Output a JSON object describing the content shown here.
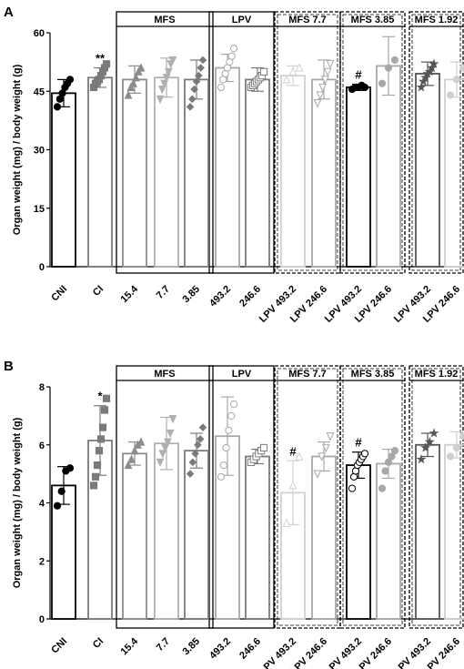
{
  "chart_data": [
    {
      "panel_label": "A",
      "type": "bar",
      "ylabel": "Organ weight (mg) / body weight (g)",
      "ylim": [
        0,
        60
      ],
      "yticks": [
        0,
        15,
        30,
        45,
        60
      ],
      "categories": [
        "CNI",
        "CI",
        "15.4",
        "7.7",
        "3.85",
        "493.2",
        "246.6",
        "LPV 493.2",
        "LPV 246.6",
        "LPV 493.2",
        "LPV 246.6",
        "LPV 493.2",
        "LPV 246.6"
      ],
      "values": [
        44.5,
        48.5,
        48,
        48.5,
        48,
        51,
        48,
        49,
        48,
        46,
        51.5,
        49.5,
        48
      ],
      "sd": [
        3.5,
        2.5,
        3.5,
        5,
        5,
        3.5,
        3,
        2.5,
        5,
        0.8,
        7.5,
        3,
        4.5
      ],
      "bar_colors": [
        "#000000",
        "#7a7a7a",
        "#8c8c8c",
        "#b0b0b0",
        "#7a7a7a",
        "#a8a8a8",
        "#7a7a7a",
        "#d2d2d2",
        "#a8a8a8",
        "#000000",
        "#a8a8a8",
        "#555555",
        "#cfcfcf"
      ],
      "markers": [
        "circle",
        "square",
        "triangle",
        "triangle-down",
        "diamond",
        "circle-open",
        "square-open",
        "triangle-open",
        "triangle-down-open",
        "circle",
        "circle",
        "star",
        "circle"
      ],
      "points": [
        [
          41,
          43,
          44.5,
          46,
          47,
          48
        ],
        [
          46,
          47,
          47.5,
          48,
          49,
          50,
          51,
          52
        ],
        [
          44,
          46,
          47,
          48.5,
          50,
          51
        ],
        [
          43,
          45.5,
          47,
          48.5,
          50,
          52,
          53
        ],
        [
          41,
          43,
          45.5,
          47.5,
          49,
          51,
          53
        ],
        [
          46,
          48,
          49.5,
          51,
          52.5,
          54,
          56
        ],
        [
          46,
          46.5,
          47,
          47.5,
          48,
          48.5,
          49,
          50
        ],
        [
          48,
          50,
          51
        ],
        [
          42,
          44,
          46,
          48,
          50,
          52
        ],
        [
          45.5,
          46,
          46,
          46.5,
          46
        ],
        [
          47,
          51,
          53
        ],
        [
          46,
          47.5,
          48.5,
          49.5,
          50,
          51,
          52
        ],
        [
          44,
          48,
          51
        ]
      ],
      "annotations": [
        {
          "category_index": 1,
          "text": "**"
        },
        {
          "category_index": 9,
          "text": "#"
        }
      ],
      "groups": [
        {
          "label": "MFS",
          "from": 2,
          "to": 4,
          "style": "solid"
        },
        {
          "label": "LPV",
          "from": 5,
          "to": 6,
          "style": "solid"
        },
        {
          "label": "MFS 7.7",
          "from": 7,
          "to": 8,
          "style": "dashed"
        },
        {
          "label": "MFS 3.85",
          "from": 9,
          "to": 10,
          "style": "dashed"
        },
        {
          "label": "MFS 1.92",
          "from": 11,
          "to": 12,
          "style": "dashed"
        }
      ]
    },
    {
      "panel_label": "B",
      "type": "bar",
      "ylabel": "Organ weight (mg) / body weight (g)",
      "ylim": [
        0,
        8
      ],
      "yticks": [
        0,
        2,
        4,
        6,
        8
      ],
      "categories": [
        "CNI",
        "CI",
        "15.4",
        "7.7",
        "3.85",
        "493.2",
        "246.6",
        "LPV 493.2",
        "LPV 246.6",
        "LPV 493.2",
        "LPV 246.6",
        "LPV 493.2",
        "LPV 246.6"
      ],
      "values": [
        4.6,
        6.15,
        5.7,
        6.05,
        5.8,
        6.3,
        5.6,
        4.35,
        5.6,
        5.3,
        5.35,
        6.0,
        6.0
      ],
      "sd": [
        0.65,
        1.2,
        0.4,
        0.9,
        0.6,
        1.35,
        0.25,
        1.1,
        0.5,
        0.45,
        0.5,
        0.4,
        0.45
      ],
      "bar_colors": [
        "#000000",
        "#7a7a7a",
        "#8c8c8c",
        "#b0b0b0",
        "#7a7a7a",
        "#a8a8a8",
        "#7a7a7a",
        "#d2d2d2",
        "#a8a8a8",
        "#000000",
        "#a8a8a8",
        "#555555",
        "#cfcfcf"
      ],
      "markers": [
        "circle",
        "square",
        "triangle",
        "triangle-down",
        "diamond",
        "circle-open",
        "square-open",
        "triangle-open",
        "triangle-down-open",
        "circle-open",
        "circle",
        "star",
        "circle"
      ],
      "points": [
        [
          3.9,
          4.4,
          5.1,
          5.2
        ],
        [
          4.6,
          4.9,
          5.3,
          5.8,
          6.2,
          6.6,
          7.2,
          7.6
        ],
        [
          5.3,
          5.5,
          5.8,
          6.0,
          6.1
        ],
        [
          5.4,
          5.7,
          5.9,
          6.1,
          6.4,
          6.9
        ],
        [
          5.0,
          5.4,
          5.7,
          6.0,
          6.2,
          6.6
        ],
        [
          4.9,
          5.3,
          5.9,
          6.5,
          7.0,
          7.4
        ],
        [
          5.4,
          5.5,
          5.6,
          5.7,
          5.8,
          5.9
        ],
        [
          3.3,
          4.6,
          5.6
        ],
        [
          5.0,
          5.6,
          5.9,
          6.3
        ],
        [
          4.5,
          4.9,
          5.1,
          5.3,
          5.4,
          5.5,
          5.6,
          5.7
        ],
        [
          4.5,
          5.1,
          5.4,
          5.6,
          5.8
        ],
        [
          5.5,
          5.9,
          6.1,
          6.4
        ],
        [
          5.6,
          5.9,
          6.3
        ]
      ],
      "annotations": [
        {
          "category_index": 1,
          "text": "*"
        },
        {
          "category_index": 7,
          "text": "#"
        },
        {
          "category_index": 9,
          "text": "#"
        }
      ],
      "groups": [
        {
          "label": "MFS",
          "from": 2,
          "to": 4,
          "style": "solid"
        },
        {
          "label": "LPV",
          "from": 5,
          "to": 6,
          "style": "solid"
        },
        {
          "label": "MFS 7.7",
          "from": 7,
          "to": 8,
          "style": "dashed"
        },
        {
          "label": "MFS 3.85",
          "from": 9,
          "to": 10,
          "style": "dashed"
        },
        {
          "label": "MFS 1.92",
          "from": 11,
          "to": 12,
          "style": "dashed"
        }
      ]
    }
  ]
}
